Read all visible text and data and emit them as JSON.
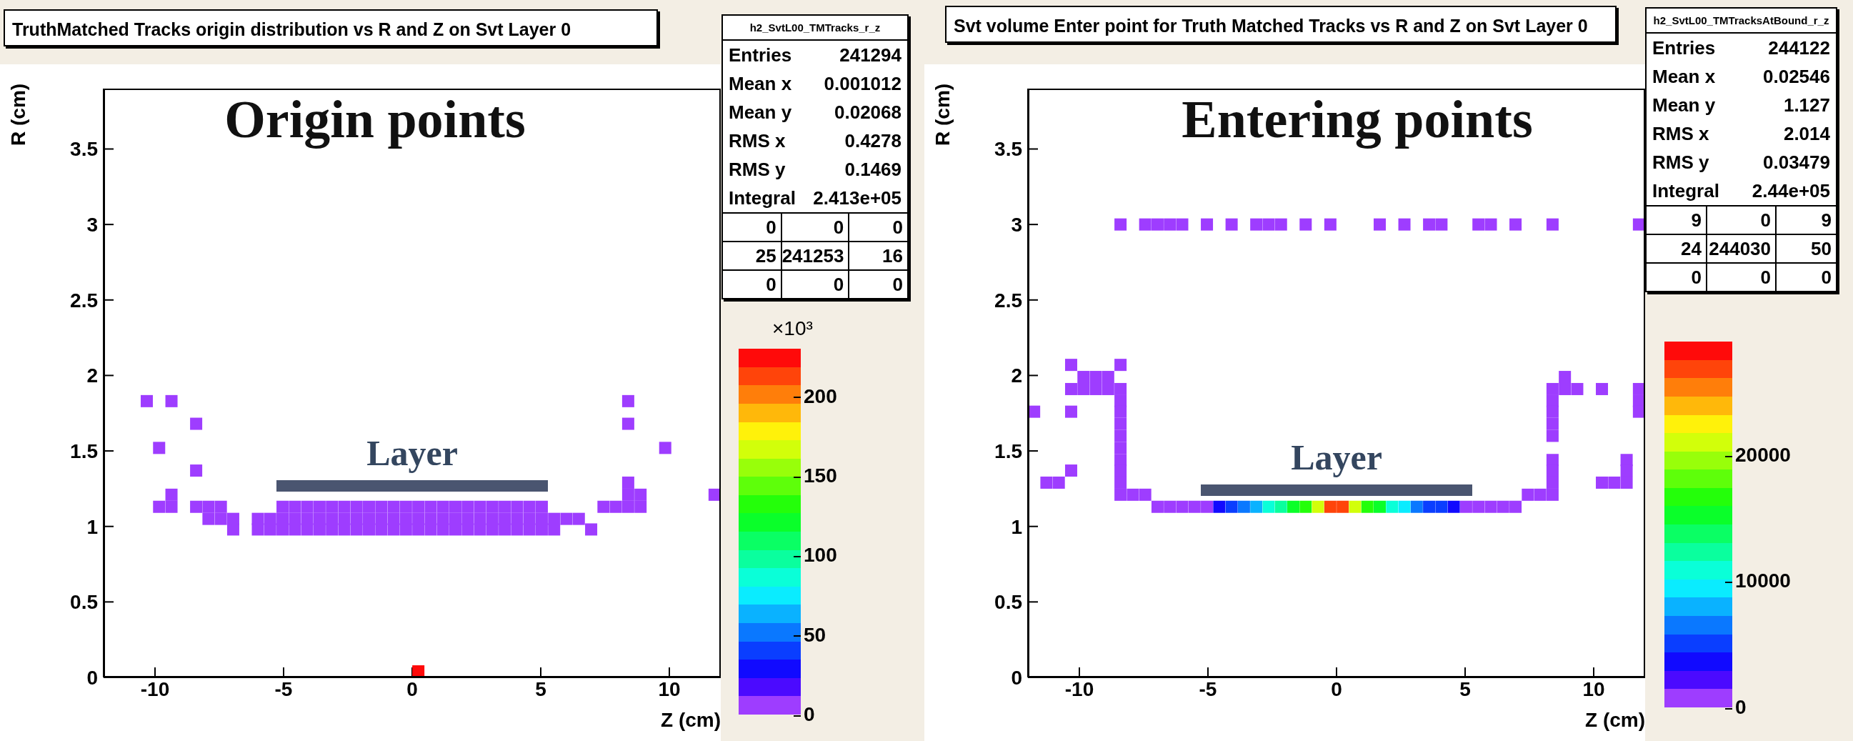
{
  "chart_data": [
    {
      "type": "scatter",
      "title": "TruthMatched Tracks origin distribution vs R and Z on Svt Layer 0",
      "xlabel": "Z (cm)",
      "ylabel": "R (cm)",
      "clabel": "×10³",
      "marker": "square",
      "xlim": [
        -12,
        12
      ],
      "xticks": [
        -10,
        -5,
        0,
        5,
        10
      ],
      "ylim": [
        0,
        3.9
      ],
      "yticks": [
        0,
        0.5,
        1,
        1.5,
        2,
        2.5,
        3,
        3.5
      ],
      "clim": [
        0,
        230
      ],
      "cticks": [
        0,
        50,
        100,
        150,
        200
      ],
      "annotations": [
        "Origin points",
        "Layer",
        "h2_SvtL00_TMTracks_r_z",
        "Entries 241294",
        "Mean x 0.001012",
        "Mean y 0.02068",
        "RMS x 0.4278",
        "RMS y 0.1469",
        "Integral 2.413e+05",
        "0 0 0",
        "25 241253 16",
        "0 0 0"
      ],
      "x": [
        -10.32,
        -9.36,
        -8.4,
        -9.84,
        -8.4,
        -9.36,
        -9.84,
        -9.36,
        -8.4,
        -7.92,
        -7.44,
        -5.04,
        -4.56,
        -4.08,
        -3.6,
        -3.12,
        -2.64,
        -2.16,
        -1.68,
        -1.2,
        -0.72,
        -0.24,
        0.24,
        0.72,
        1.2,
        1.68,
        2.16,
        2.64,
        3.12,
        3.6,
        4.08,
        4.56,
        5.04,
        7.44,
        7.92,
        8.4,
        8.88,
        -7.92,
        -7.44,
        -6.96,
        -6,
        -5.52,
        -5.04,
        -4.56,
        -4.08,
        -3.6,
        -3.12,
        -2.64,
        -2.16,
        -1.68,
        -1.2,
        -0.72,
        -0.24,
        0.24,
        0.72,
        1.2,
        1.68,
        2.16,
        2.64,
        3.12,
        3.6,
        4.08,
        4.56,
        5.04,
        5.52,
        6,
        6.48,
        -6.96,
        -6,
        -5.52,
        -5.04,
        -4.56,
        -4.08,
        -3.6,
        -3.12,
        -2.64,
        -2.16,
        -1.68,
        -1.2,
        -0.72,
        -0.24,
        0.24,
        0.72,
        1.2,
        1.68,
        2.16,
        2.64,
        3.12,
        3.6,
        4.08,
        4.56,
        5.04,
        5.52,
        6.96,
        8.4,
        8.4,
        9.84,
        8.4,
        8.4,
        8.88,
        11.76,
        0.24
      ],
      "values": [
        1.83,
        1.83,
        1.68,
        1.52,
        1.37,
        1.21,
        1.13,
        1.13,
        1.13,
        1.13,
        1.13,
        1.13,
        1.13,
        1.13,
        1.13,
        1.13,
        1.13,
        1.13,
        1.13,
        1.13,
        1.13,
        1.13,
        1.13,
        1.13,
        1.13,
        1.13,
        1.13,
        1.13,
        1.13,
        1.13,
        1.13,
        1.13,
        1.13,
        1.13,
        1.13,
        1.13,
        1.13,
        1.05,
        1.05,
        1.05,
        1.05,
        1.05,
        1.05,
        1.05,
        1.05,
        1.05,
        1.05,
        1.05,
        1.05,
        1.05,
        1.05,
        1.05,
        1.05,
        1.05,
        1.05,
        1.05,
        1.05,
        1.05,
        1.05,
        1.05,
        1.05,
        1.05,
        1.05,
        1.05,
        1.05,
        1.05,
        1.05,
        0.98,
        0.98,
        0.98,
        0.98,
        0.98,
        0.98,
        0.98,
        0.98,
        0.98,
        0.98,
        0.98,
        0.98,
        0.98,
        0.98,
        0.98,
        0.98,
        0.98,
        0.98,
        0.98,
        0.98,
        0.98,
        0.98,
        0.98,
        0.98,
        0.98,
        0.98,
        0.98,
        1.83,
        1.68,
        1.52,
        1.29,
        1.21,
        1.21,
        1.21,
        0.04
      ],
      "cvalues": [
        1,
        1,
        1,
        1,
        1,
        1,
        1,
        1,
        1,
        1,
        1,
        1,
        1,
        1,
        1,
        1,
        1,
        1,
        1,
        1,
        1,
        1,
        1,
        1,
        1,
        1,
        1,
        1,
        1,
        1,
        1,
        1,
        1,
        1,
        1,
        1,
        1,
        1,
        1,
        1,
        1,
        1,
        1,
        1,
        1,
        1,
        1,
        1,
        1,
        1,
        1,
        1,
        1,
        1,
        1,
        1,
        1,
        1,
        1,
        1,
        1,
        1,
        1,
        1,
        1,
        1,
        1,
        1,
        1,
        1,
        1,
        1,
        1,
        1,
        1,
        1,
        1,
        1,
        1,
        1,
        1,
        1,
        1,
        1,
        1,
        1,
        1,
        1,
        1,
        1,
        1,
        1,
        1,
        1,
        1,
        1,
        1,
        1,
        1,
        1,
        1,
        225
      ]
    },
    {
      "type": "scatter",
      "title": "Svt volume Enter point for Truth Matched Tracks vs R and Z on Svt Layer 0",
      "xlabel": "Z (cm)",
      "ylabel": "R (cm)",
      "marker": "square",
      "xlim": [
        -12,
        12
      ],
      "xticks": [
        -10,
        -5,
        0,
        5,
        10
      ],
      "ylim": [
        0,
        3.9
      ],
      "yticks": [
        0,
        0.5,
        1,
        1.5,
        2,
        2.5,
        3,
        3.5
      ],
      "clim": [
        0,
        29000
      ],
      "cticks": [
        0,
        10000,
        20000
      ],
      "annotations": [
        "Entering points",
        "Layer",
        "h2_SvtL00_TMTracksAtBound_r_z",
        "Entries 244122",
        "Mean x 0.02546",
        "Mean y 1.127",
        "RMS x 2.014",
        "RMS y 0.03479",
        "Integral 2.44e+05",
        "9 0 9",
        "24 244030 50",
        "0 0 0"
      ],
      "x": [
        -8.4,
        -7.44,
        -6.96,
        -6.48,
        -6,
        -5.04,
        -4.08,
        -3.12,
        -2.64,
        -2.16,
        -1.2,
        -0.24,
        1.68,
        2.64,
        3.6,
        4.08,
        5.52,
        6,
        6.96,
        8.4,
        11.76,
        -10.32,
        -8.4,
        -9.84,
        -9.36,
        -8.88,
        8.88,
        -10.32,
        -9.84,
        -9.36,
        -8.88,
        -8.4,
        8.4,
        8.88,
        9.36,
        10.32,
        11.76,
        -8.4,
        8.4,
        11.76,
        -11.76,
        -10.32,
        -8.4,
        8.4,
        11.76,
        -8.4,
        8.4,
        -8.4,
        8.4,
        -8.4,
        -8.4,
        8.4,
        11.28,
        -10.32,
        -8.4,
        8.4,
        11.28,
        -11.28,
        -10.8,
        -8.4,
        8.4,
        10.32,
        10.8,
        11.28,
        -8.4,
        -7.92,
        -7.44,
        7.44,
        7.92,
        8.4,
        -6.96,
        -6.48,
        -6,
        -5.52,
        -5.04,
        -4.56,
        -4.08,
        -3.6,
        -3.12,
        -2.64,
        -2.16,
        -1.68,
        -1.2,
        -0.72,
        -0.24,
        0.24,
        0.72,
        1.2,
        1.68,
        2.16,
        2.64,
        3.12,
        3.6,
        4.08,
        4.56,
        5.04,
        5.52,
        6,
        6.48,
        6.96
      ],
      "values": [
        3,
        3,
        3,
        3,
        3,
        3,
        3,
        3,
        3,
        3,
        3,
        3,
        3,
        3,
        3,
        3,
        3,
        3,
        3,
        3,
        3,
        2.07,
        2.07,
        1.99,
        1.99,
        1.99,
        1.99,
        1.91,
        1.91,
        1.91,
        1.91,
        1.91,
        1.91,
        1.91,
        1.91,
        1.91,
        1.91,
        1.83,
        1.83,
        1.83,
        1.76,
        1.76,
        1.76,
        1.76,
        1.76,
        1.68,
        1.68,
        1.6,
        1.6,
        1.52,
        1.44,
        1.44,
        1.44,
        1.37,
        1.37,
        1.37,
        1.37,
        1.29,
        1.29,
        1.29,
        1.29,
        1.29,
        1.29,
        1.29,
        1.21,
        1.21,
        1.21,
        1.21,
        1.21,
        1.21,
        1.13,
        1.13,
        1.13,
        1.13,
        1.13,
        1.13,
        1.13,
        1.13,
        1.13,
        1.13,
        1.13,
        1.13,
        1.13,
        1.13,
        1.13,
        1.13,
        1.13,
        1.13,
        1.13,
        1.13,
        1.13,
        1.13,
        1.13,
        1.13,
        1.13,
        1.13,
        1.13,
        1.13,
        1.13,
        1.13
      ],
      "cvalues": [
        500,
        500,
        500,
        500,
        500,
        500,
        500,
        500,
        500,
        500,
        500,
        500,
        500,
        500,
        500,
        500,
        500,
        500,
        500,
        500,
        500,
        500,
        500,
        500,
        500,
        500,
        500,
        500,
        500,
        500,
        500,
        500,
        500,
        500,
        500,
        500,
        500,
        500,
        500,
        500,
        500,
        500,
        500,
        500,
        500,
        500,
        500,
        500,
        500,
        500,
        500,
        500,
        500,
        500,
        500,
        500,
        500,
        500,
        500,
        500,
        500,
        500,
        500,
        500,
        500,
        500,
        500,
        500,
        500,
        500,
        500,
        500,
        500,
        500,
        500,
        3000,
        5000,
        6000,
        8000,
        10500,
        12500,
        14500,
        16500,
        21000,
        26500,
        26500,
        21000,
        16500,
        14500,
        11500,
        9000,
        7000,
        5500,
        5000,
        3000,
        500,
        500,
        500,
        500,
        500
      ]
    }
  ]
}
